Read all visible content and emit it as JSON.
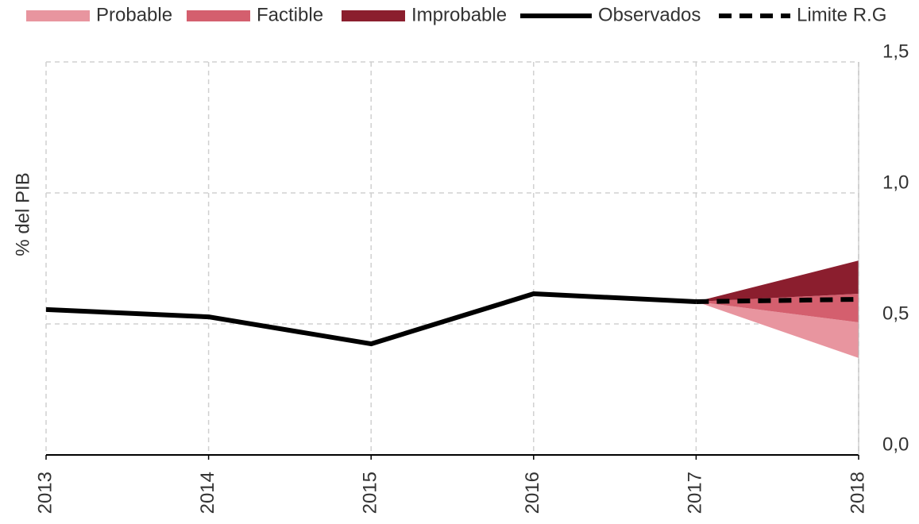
{
  "chart_data": {
    "type": "fan",
    "y_axis_label": "% del PIB",
    "categories": [
      "2013",
      "2014",
      "2015",
      "2016",
      "2017",
      "2018"
    ],
    "ylim": [
      0,
      1.5
    ],
    "yticks": [
      {
        "value": 0,
        "label": "0,0"
      },
      {
        "value": 0.5,
        "label": "0,5"
      },
      {
        "value": 1,
        "label": "1,0"
      },
      {
        "value": 1.5,
        "label": "1,5"
      }
    ],
    "grid": true,
    "y_axis_side": "right",
    "legend": "top",
    "series": [
      {
        "name": "Probable",
        "kind": "band",
        "color": "#e8959f",
        "lower": [
          null,
          null,
          null,
          null,
          0.585,
          0.37
        ],
        "upper": [
          null,
          null,
          null,
          null,
          0.585,
          0.506
        ]
      },
      {
        "name": "Factible",
        "kind": "band",
        "color": "#d45f6e",
        "lower": [
          null,
          null,
          null,
          null,
          0.585,
          0.506
        ],
        "upper": [
          null,
          null,
          null,
          null,
          0.585,
          0.615
        ]
      },
      {
        "name": "Improbable",
        "kind": "band",
        "color": "#8b1e2e",
        "lower": [
          null,
          null,
          null,
          null,
          0.585,
          0.615
        ],
        "upper": [
          null,
          null,
          null,
          null,
          0.585,
          0.742
        ]
      },
      {
        "name": "Observados",
        "kind": "line",
        "color": "#000000",
        "dashed": false,
        "values": [
          0.555,
          0.527,
          0.424,
          0.615,
          0.585,
          null
        ]
      },
      {
        "name": "Limite R.G",
        "kind": "line",
        "color": "#000000",
        "dashed": true,
        "values": [
          null,
          null,
          null,
          null,
          0.585,
          0.594
        ]
      }
    ]
  }
}
